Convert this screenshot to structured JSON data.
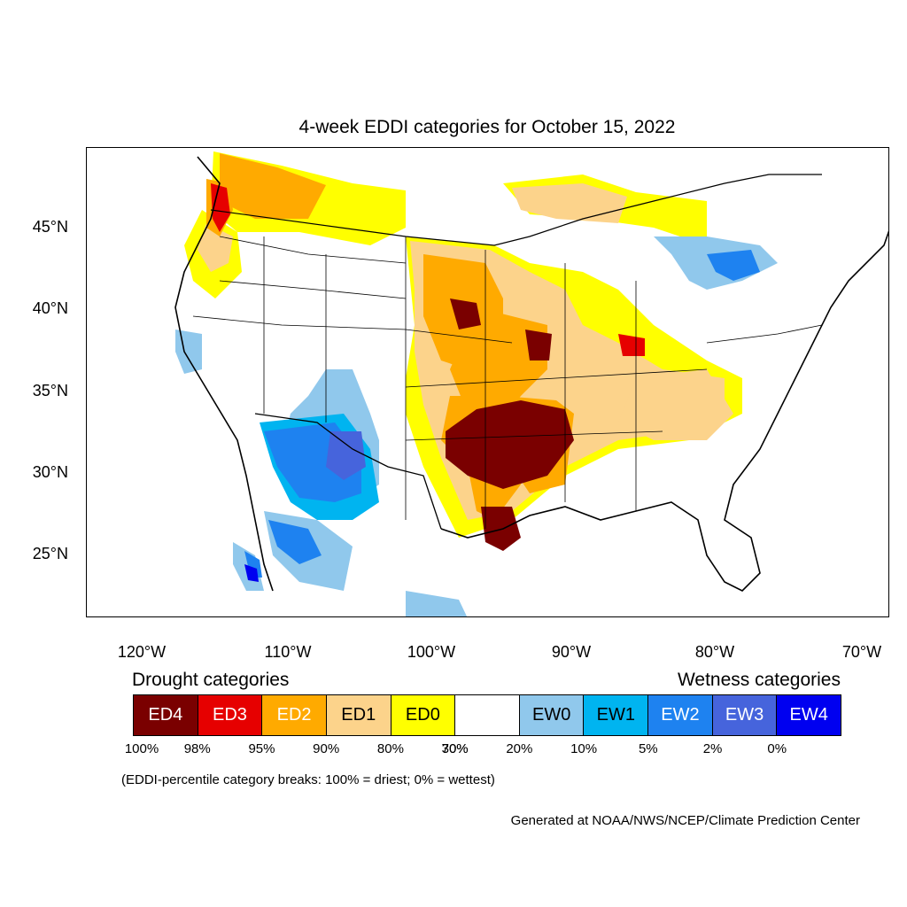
{
  "title": "4-week EDDI categories for October 15, 2022",
  "lat_labels": [
    "45°N",
    "40°N",
    "35°N",
    "30°N",
    "25°N"
  ],
  "lon_labels": [
    "120°W",
    "110°W",
    "100°W",
    "90°W",
    "80°W",
    "70°W"
  ],
  "drought_heading": "Drought categories",
  "wetness_heading": "Wetness categories",
  "legend": [
    {
      "label": "ED4",
      "color": "#7a0000",
      "text_color": "#ffffff"
    },
    {
      "label": "ED3",
      "color": "#e60000",
      "text_color": "#ffffff"
    },
    {
      "label": "ED2",
      "color": "#ffaa00",
      "text_color": "#ffffff"
    },
    {
      "label": "ED1",
      "color": "#fcd38b",
      "text_color": "#000000"
    },
    {
      "label": "ED0",
      "color": "#ffff00",
      "text_color": "#000000"
    },
    {
      "label": "",
      "color": "#ffffff",
      "text_color": "#000000"
    },
    {
      "label": "EW0",
      "color": "#90c8ec",
      "text_color": "#000000"
    },
    {
      "label": "EW1",
      "color": "#00b4f0",
      "text_color": "#000000"
    },
    {
      "label": "EW2",
      "color": "#1e82f0",
      "text_color": "#ffffff"
    },
    {
      "label": "EW3",
      "color": "#4664dc",
      "text_color": "#ffffff"
    },
    {
      "label": "EW4",
      "color": "#0000f0",
      "text_color": "#ffffff"
    }
  ],
  "percent_breaks": [
    "100%",
    "98%",
    "95%",
    "90%",
    "80%",
    "70%",
    "30%",
    "20%",
    "10%",
    "5%",
    "2%",
    "0%"
  ],
  "note": "(EDDI-percentile category breaks: 100% = driest; 0% = wettest)",
  "credit": "Generated at NOAA/NWS/NCEP/Climate Prediction Center"
}
